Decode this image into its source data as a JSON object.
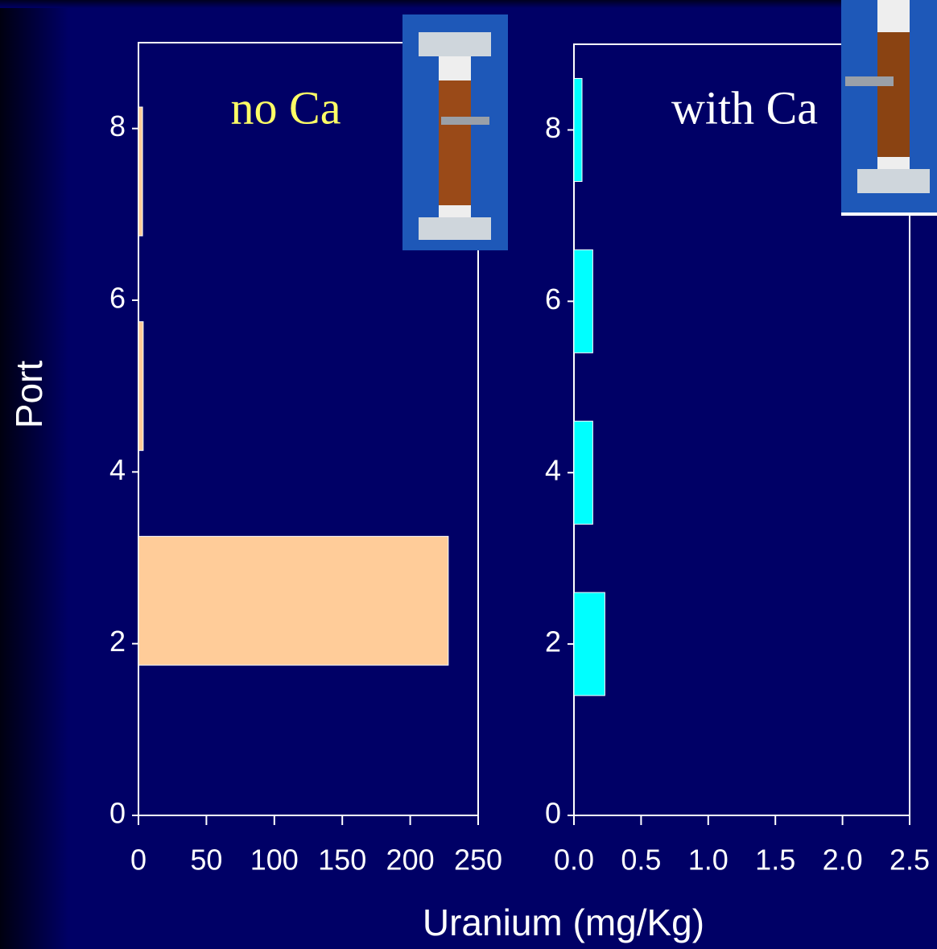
{
  "shared_labels": {
    "y": "Port",
    "x": "Uranium (mg/Kg)"
  },
  "chart_data": [
    {
      "type": "bar",
      "orientation": "horizontal",
      "annotation": "no Ca",
      "annotation_color": "#ffff66",
      "y": [
        2.5,
        5,
        7.5
      ],
      "values": [
        228,
        3.5,
        3
      ],
      "color": "#ffcc99",
      "xlim": [
        0,
        250
      ],
      "xticks": [
        0,
        50,
        100,
        150,
        200,
        250
      ],
      "ylim": [
        0,
        9
      ],
      "yticks": [
        0,
        2,
        4,
        6,
        8
      ]
    },
    {
      "type": "bar",
      "orientation": "horizontal",
      "annotation": "with Ca",
      "annotation_color": "#ffffff",
      "y": [
        2,
        4,
        6,
        8
      ],
      "values": [
        0.23,
        0.14,
        0.14,
        0.06
      ],
      "color": "#00ffff",
      "xlim": [
        0,
        2.5
      ],
      "xticks": [
        {
          "value": 0,
          "label": "0.0"
        },
        0.5,
        {
          "value": 1,
          "label": "1.0"
        },
        1.5,
        {
          "value": 2,
          "label": "2.0"
        },
        2.5
      ],
      "ylim": [
        0,
        9
      ],
      "yticks": [
        0,
        2,
        4,
        6,
        8
      ]
    }
  ]
}
